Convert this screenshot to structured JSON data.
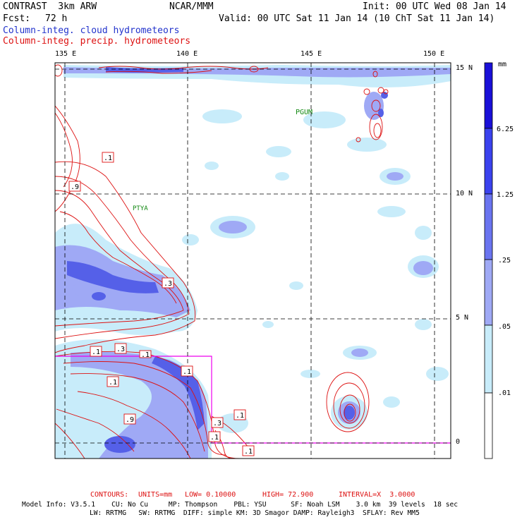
{
  "header": {
    "model": "CONTRAST  3km ARW",
    "org": "NCAR/MMM",
    "init": "Init: 00 UTC Wed 08 Jan 14",
    "fcst_label": "Fcst:",
    "fcst_value": "72 h",
    "valid": "Valid: 00 UTC Sat 11 Jan 14 (10 ChT Sat 11 Jan 14)",
    "field1": "Column-integ. cloud hydrometeors",
    "field2": "Column-integ. precip. hydrometeors"
  },
  "axes": {
    "lon_labels": [
      "135 E",
      "140 E",
      "145 E",
      "150 E"
    ],
    "lat_labels": [
      "15 N",
      "10 N",
      "5 N",
      "0"
    ]
  },
  "map_labels": {
    "station1": "PGUM",
    "station2": "PTYA",
    "contour_labels": [
      ".1",
      ".9",
      ".3",
      ".1",
      ".3",
      ".1",
      ".1",
      ".1",
      ".9",
      ".3",
      ".1",
      ".1",
      ".1"
    ]
  },
  "colorbar": {
    "unit": "mm",
    "ticks": [
      "6.25",
      "1.25",
      ".25",
      ".05",
      ".01"
    ],
    "colors": [
      "#1a10d8",
      "#3b42ee",
      "#6a74f0",
      "#9fa9f5",
      "#c8ecfa",
      "#ffffff"
    ]
  },
  "colors": {
    "precip_contour": "#dd1111",
    "cloud_fill_light": "#c8ecfa",
    "cloud_fill_mid": "#9fa9f5",
    "cloud_fill_dark": "#6a74f0",
    "nest_box": "#ee00ee"
  },
  "footer": {
    "contours_label": "CONTOURS:",
    "units": "UNITS=mm",
    "low": "LOW= 0.10000",
    "high": "HIGH= 72.900",
    "interval": "INTERVAL=X  3.0000",
    "model_info_1": "Model Info: V3.5.1    CU: No Cu     MP: Thompson    PBL: YSU      SF: Noah LSM    3.0 km  39 levels  18 sec",
    "model_info_2": "LW: RRTMG   SW: RRTMG  DIFF: simple KM: 3D Smagor DAMP: Rayleigh3  SFLAY: Rev MM5"
  }
}
